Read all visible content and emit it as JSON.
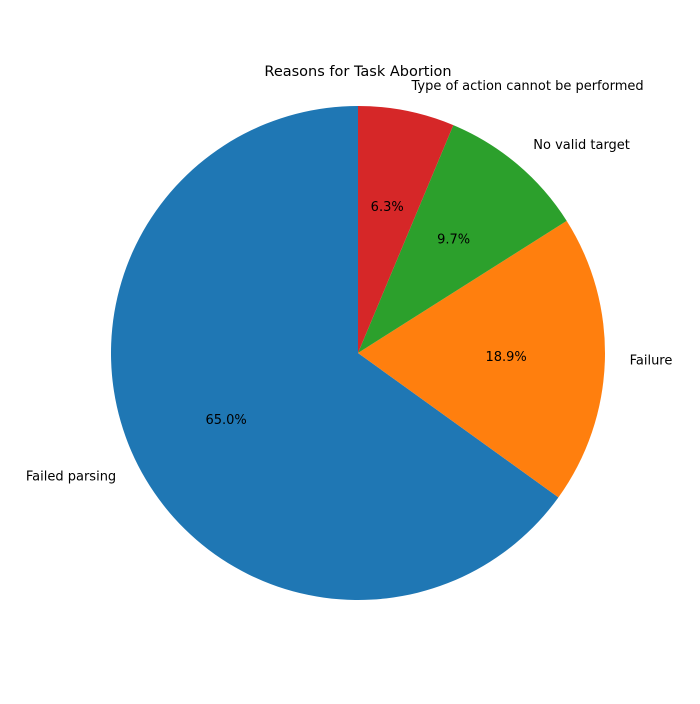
{
  "chart_data": {
    "type": "pie",
    "title": "Reasons for Task Abortion",
    "slices": [
      {
        "label": "Failed parsing",
        "value": 65.0,
        "pct_label": "65.0%",
        "color": "#1f77b4"
      },
      {
        "label": "Failure",
        "value": 18.9,
        "pct_label": "18.9%",
        "color": "#ff7f0e"
      },
      {
        "label": "No valid target",
        "value": 9.7,
        "pct_label": "9.7%",
        "color": "#2ca02c"
      },
      {
        "label": "Type of action cannot be performed",
        "value": 6.3,
        "pct_label": "6.3%",
        "color": "#d62728"
      }
    ],
    "start_angle_deg": 90,
    "direction": "counterclockwise",
    "legend": "none"
  }
}
